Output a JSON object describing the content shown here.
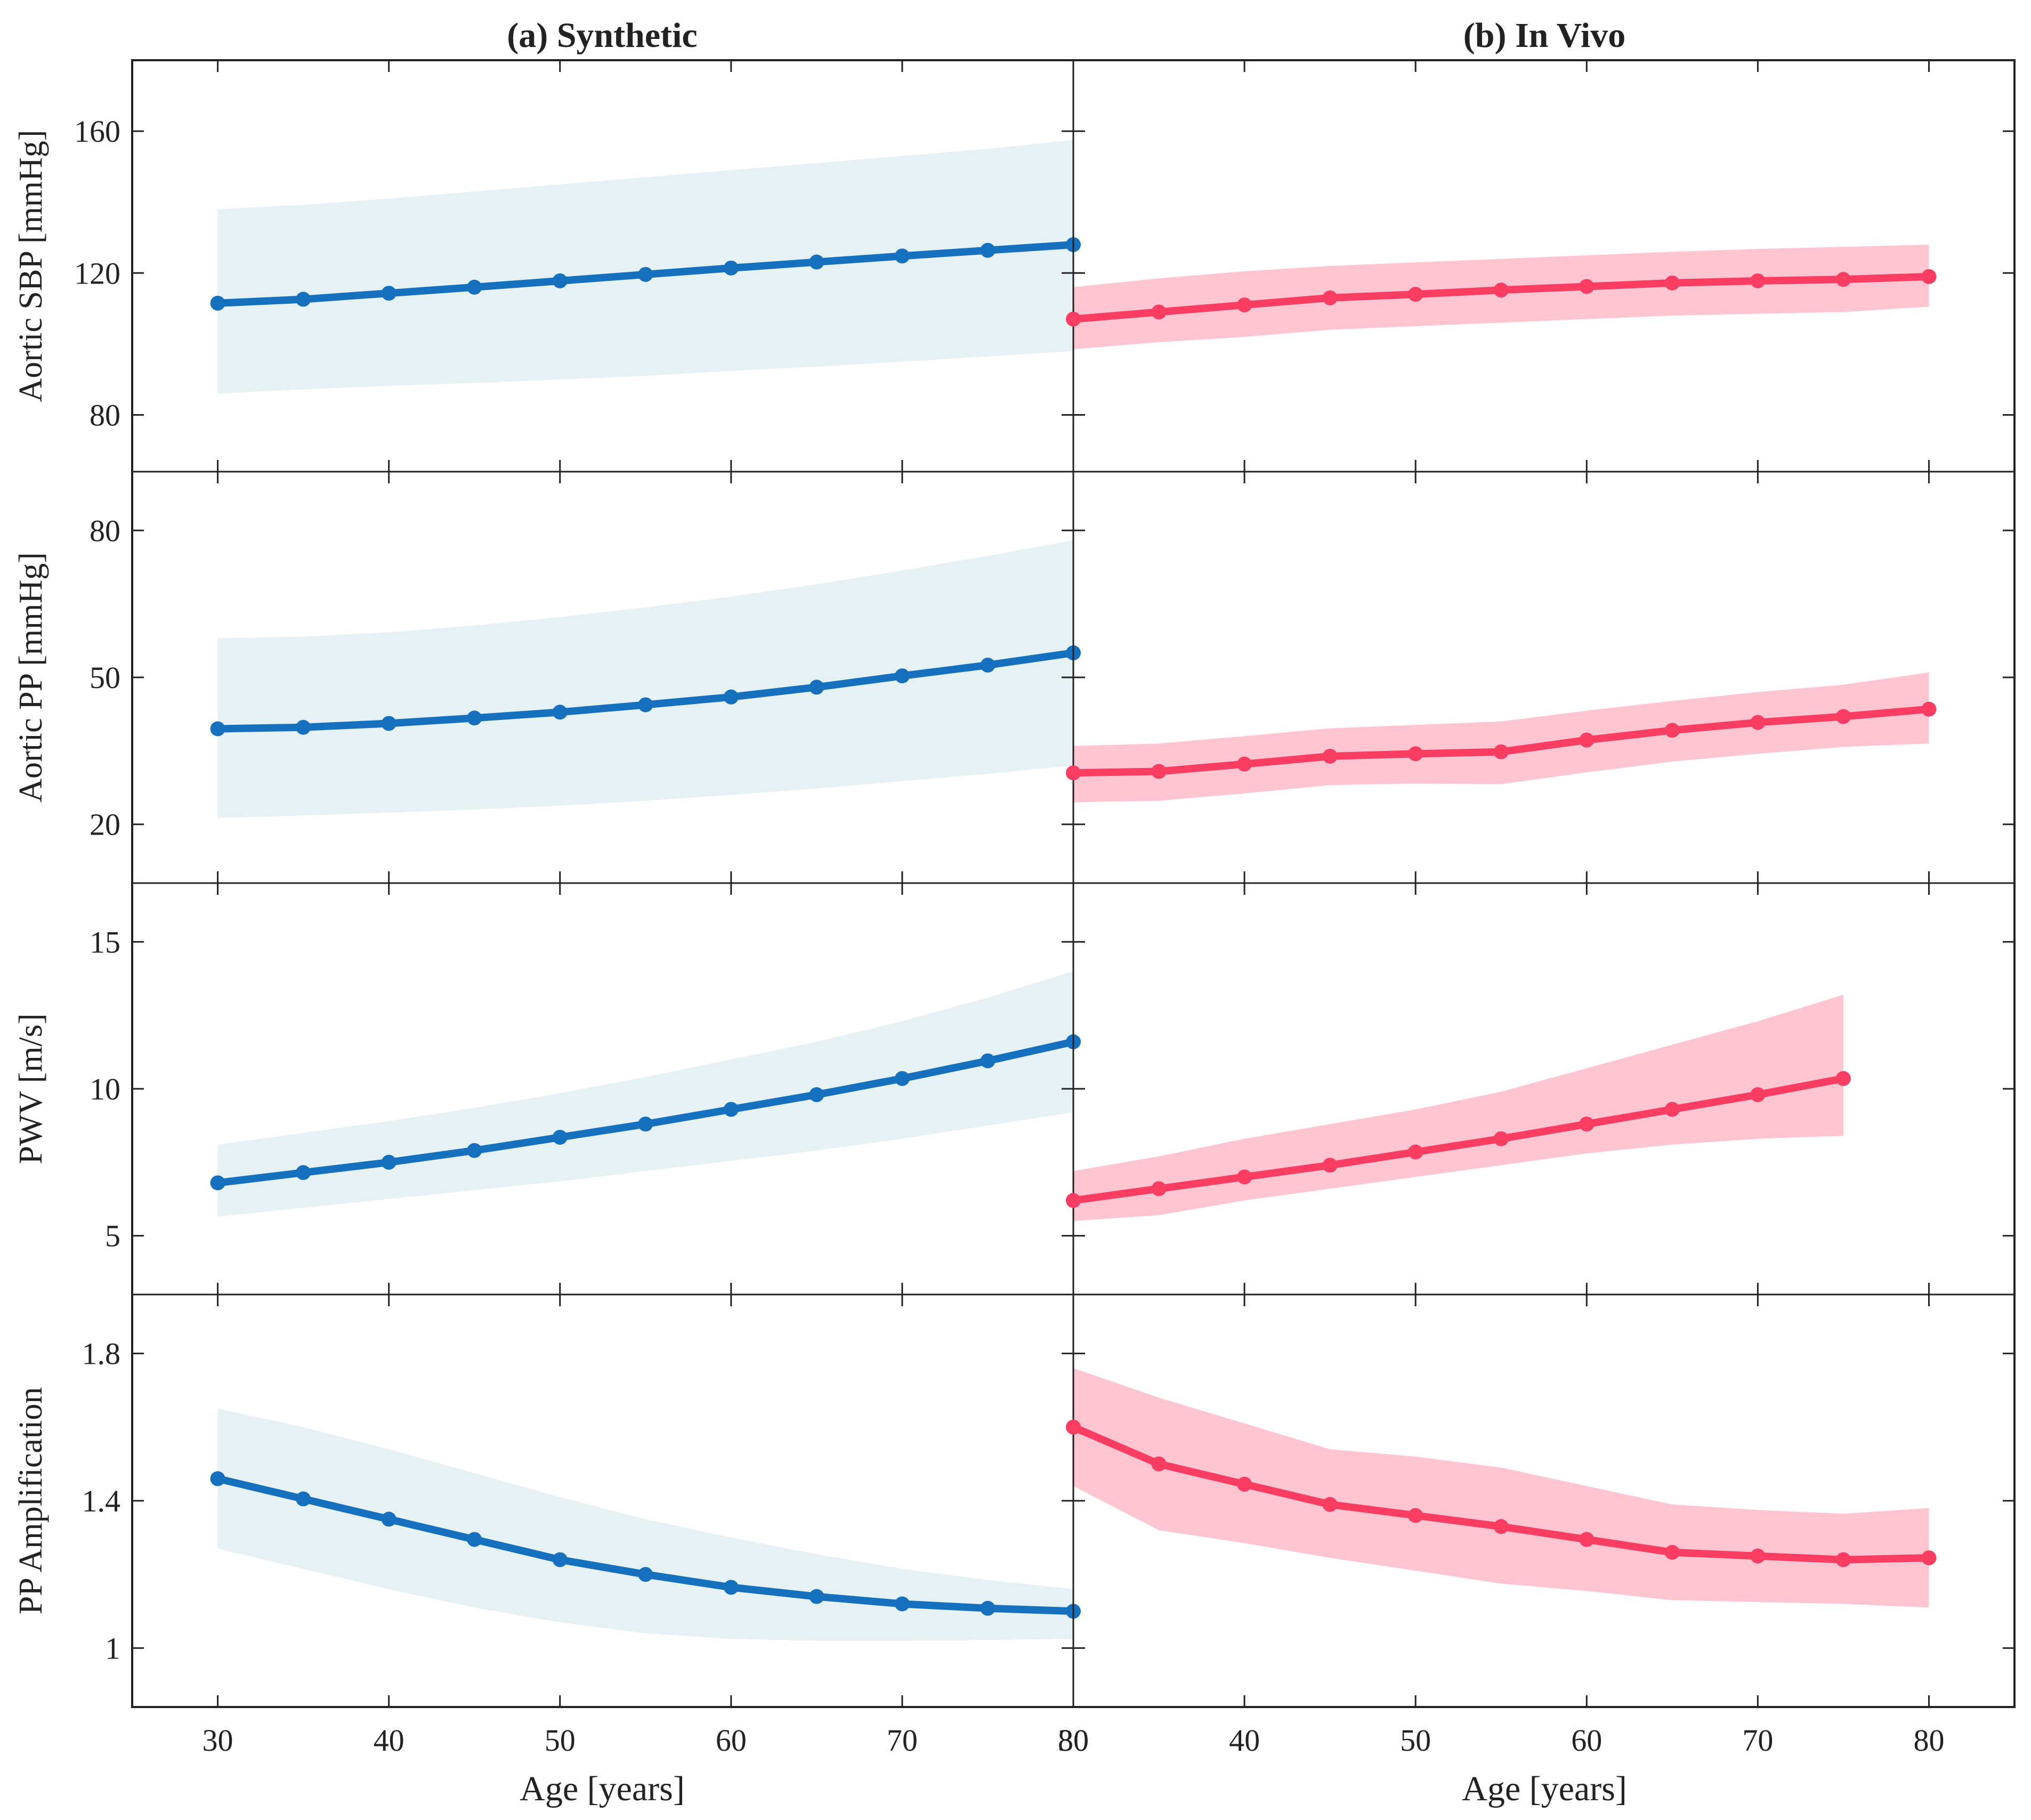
{
  "colors": {
    "synthetic_line": "#1770BE",
    "synthetic_band": "#E6F1F4",
    "invivo_line": "#FA3E63",
    "invivo_band": "#FFC5D2",
    "axis": "#222222"
  },
  "columns": [
    {
      "title": "(a) Synthetic"
    },
    {
      "title": "(b) In Vivo"
    }
  ],
  "xlabel": "Age [years]",
  "rows": [
    {
      "ylabel": "Aortic SBP [mmHg]"
    },
    {
      "ylabel": "Aortic PP [mmHg]"
    },
    {
      "ylabel": "PWV [m/s]"
    },
    {
      "ylabel": "PP Amplification"
    }
  ],
  "chart_data": [
    {
      "type": "line",
      "panel": "(a) Synthetic - Aortic SBP",
      "xlim": [
        25,
        80
      ],
      "ylim": [
        64,
        180
      ],
      "xticks": [
        30,
        40,
        50,
        60,
        70,
        80
      ],
      "yticks": [
        80,
        120,
        160
      ],
      "x": [
        30,
        35,
        40,
        45,
        50,
        55,
        60,
        65,
        70,
        75,
        80
      ],
      "y": [
        111.5,
        112.6,
        114.3,
        116.0,
        117.8,
        119.6,
        121.4,
        123.1,
        124.8,
        126.4,
        128.0
      ],
      "band_upper": [
        138.0,
        139.2,
        141.0,
        143.0,
        145.0,
        147.0,
        149.0,
        151.0,
        153.0,
        155.0,
        157.5
      ],
      "band_lower": [
        86.0,
        87.2,
        88.2,
        89.0,
        90.0,
        91.0,
        92.4,
        93.6,
        95.0,
        96.5,
        98.0
      ]
    },
    {
      "type": "line",
      "panel": "(b) In Vivo - Aortic SBP",
      "xlim": [
        30,
        85
      ],
      "ylim": [
        64,
        180
      ],
      "xticks": [
        30,
        40,
        50,
        60,
        70,
        80
      ],
      "yticks": [
        80,
        120,
        160
      ],
      "x": [
        30,
        35,
        40,
        45,
        50,
        55,
        60,
        65,
        70,
        75,
        80
      ],
      "y": [
        107.0,
        109.0,
        111.0,
        113.0,
        114.0,
        115.2,
        116.2,
        117.2,
        117.8,
        118.2,
        119.0
      ],
      "band_upper": [
        116.0,
        118.5,
        120.5,
        122.0,
        123.0,
        124.0,
        125.0,
        126.0,
        126.8,
        127.4,
        128.0
      ],
      "band_lower": [
        98.5,
        100.5,
        102.0,
        104.0,
        105.0,
        106.0,
        107.0,
        108.0,
        108.5,
        109.0,
        110.5
      ]
    },
    {
      "type": "line",
      "panel": "(a) Synthetic - Aortic PP",
      "xlim": [
        25,
        80
      ],
      "ylim": [
        8,
        92
      ],
      "xticks": [
        30,
        40,
        50,
        60,
        70,
        80
      ],
      "yticks": [
        20,
        50,
        80
      ],
      "x": [
        30,
        35,
        40,
        45,
        50,
        55,
        60,
        65,
        70,
        75,
        80
      ],
      "y": [
        39.5,
        39.8,
        40.6,
        41.7,
        42.9,
        44.4,
        46.0,
        48.0,
        50.3,
        52.5,
        55.0
      ],
      "band_upper": [
        58.0,
        58.3,
        59.2,
        60.6,
        62.3,
        64.3,
        66.5,
        69.0,
        71.8,
        74.8,
        78.0
      ],
      "band_lower": [
        21.3,
        21.8,
        22.4,
        23.0,
        23.8,
        24.8,
        26.0,
        27.3,
        28.8,
        30.3,
        32.0
      ]
    },
    {
      "type": "line",
      "panel": "(b) In Vivo - Aortic PP",
      "xlim": [
        30,
        85
      ],
      "ylim": [
        8,
        92
      ],
      "xticks": [
        30,
        40,
        50,
        60,
        70,
        80
      ],
      "yticks": [
        20,
        50,
        80
      ],
      "x": [
        30,
        35,
        40,
        45,
        50,
        55,
        60,
        65,
        70,
        75,
        80
      ],
      "y": [
        30.5,
        30.8,
        32.3,
        33.9,
        34.4,
        34.8,
        37.2,
        39.2,
        40.8,
        42.0,
        43.5
      ],
      "band_upper": [
        36.0,
        36.5,
        38.0,
        39.6,
        40.3,
        41.0,
        43.2,
        45.2,
        47.0,
        48.5,
        51.0
      ],
      "band_lower": [
        24.5,
        24.8,
        26.3,
        28.0,
        28.3,
        28.2,
        30.6,
        32.8,
        34.4,
        35.8,
        36.5
      ]
    },
    {
      "type": "line",
      "panel": "(a) Synthetic - PWV",
      "xlim": [
        25,
        80
      ],
      "ylim": [
        3.0,
        17.0
      ],
      "xticks": [
        30,
        40,
        50,
        60,
        70,
        80
      ],
      "yticks": [
        5,
        10,
        15
      ],
      "x": [
        30,
        35,
        40,
        45,
        50,
        55,
        60,
        65,
        70,
        75,
        80
      ],
      "y": [
        6.8,
        7.15,
        7.5,
        7.9,
        8.35,
        8.8,
        9.3,
        9.8,
        10.35,
        10.95,
        11.6
      ],
      "band_upper": [
        8.1,
        8.5,
        8.9,
        9.35,
        9.85,
        10.4,
        11.0,
        11.6,
        12.3,
        13.1,
        14.0
      ],
      "band_lower": [
        5.65,
        5.95,
        6.25,
        6.55,
        6.85,
        7.2,
        7.55,
        7.9,
        8.3,
        8.75,
        9.2
      ]
    },
    {
      "type": "line",
      "panel": "(b) In Vivo - PWV",
      "xlim": [
        30,
        85
      ],
      "ylim": [
        3.0,
        17.0
      ],
      "xticks": [
        30,
        40,
        50,
        60,
        70,
        80
      ],
      "yticks": [
        5,
        10,
        15
      ],
      "x": [
        30,
        35,
        40,
        45,
        50,
        55,
        60,
        65,
        70,
        75
      ],
      "y": [
        6.2,
        6.6,
        7.0,
        7.4,
        7.85,
        8.3,
        8.8,
        9.3,
        9.8,
        10.35
      ],
      "band_upper": [
        7.2,
        7.7,
        8.3,
        8.8,
        9.3,
        9.9,
        10.7,
        11.5,
        12.3,
        13.2
      ],
      "band_lower": [
        5.5,
        5.7,
        6.2,
        6.6,
        7.0,
        7.4,
        7.8,
        8.1,
        8.3,
        8.4
      ]
    },
    {
      "type": "line",
      "panel": "(a) Synthetic - PP Amplification",
      "xlim": [
        25,
        80
      ],
      "ylim": [
        0.84,
        1.96
      ],
      "xticks": [
        30,
        40,
        50,
        60,
        70,
        80
      ],
      "yticks": [
        1.0,
        1.4,
        1.8
      ],
      "ytick_labels": [
        "1",
        "1.4",
        "1.8"
      ],
      "x": [
        30,
        35,
        40,
        45,
        50,
        55,
        60,
        65,
        70,
        75,
        80
      ],
      "y": [
        1.46,
        1.405,
        1.35,
        1.295,
        1.24,
        1.2,
        1.165,
        1.14,
        1.12,
        1.108,
        1.1
      ],
      "band_upper": [
        1.65,
        1.6,
        1.54,
        1.475,
        1.41,
        1.35,
        1.3,
        1.255,
        1.215,
        1.185,
        1.16
      ],
      "band_lower": [
        1.27,
        1.215,
        1.16,
        1.11,
        1.07,
        1.04,
        1.025,
        1.02,
        1.02,
        1.022,
        1.025
      ]
    },
    {
      "type": "line",
      "panel": "(b) In Vivo - PP Amplification",
      "xlim": [
        30,
        85
      ],
      "ylim": [
        0.84,
        1.96
      ],
      "xticks": [
        30,
        40,
        50,
        60,
        70,
        80
      ],
      "yticks": [
        1.0,
        1.4,
        1.8
      ],
      "ytick_labels": [
        "1",
        "1.4",
        "1.8"
      ],
      "x": [
        30,
        35,
        40,
        45,
        50,
        55,
        60,
        65,
        70,
        75,
        80
      ],
      "y": [
        1.6,
        1.5,
        1.445,
        1.39,
        1.36,
        1.33,
        1.295,
        1.26,
        1.25,
        1.24,
        1.245
      ],
      "band_upper": [
        1.76,
        1.68,
        1.61,
        1.54,
        1.52,
        1.49,
        1.44,
        1.39,
        1.375,
        1.365,
        1.38
      ],
      "band_lower": [
        1.44,
        1.32,
        1.285,
        1.245,
        1.21,
        1.175,
        1.155,
        1.13,
        1.125,
        1.12,
        1.11
      ]
    }
  ]
}
